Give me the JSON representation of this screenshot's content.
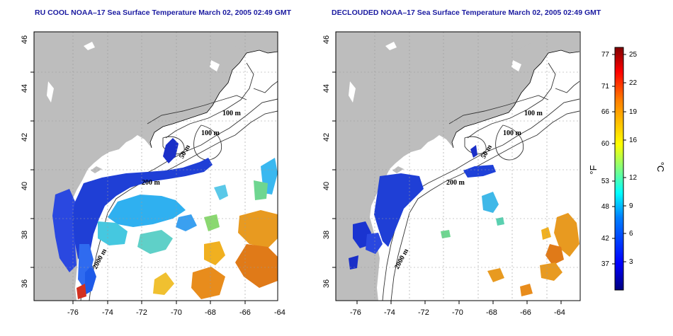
{
  "panels": [
    {
      "id": "left",
      "title": "RU COOL NOAA–17 Sea Surface Temperature March 02, 2005 02:49 GMT",
      "x_ticks": [
        "-76",
        "-74",
        "-72",
        "-70",
        "-68",
        "-66",
        "-64"
      ],
      "y_ticks": [
        "36",
        "38",
        "40",
        "42",
        "44",
        "46"
      ],
      "contour_labels": [
        "100 m",
        "100 m",
        "50 m",
        "200 m",
        "2000 m"
      ]
    },
    {
      "id": "right",
      "title": "DECLOUDED NOAA–17 Sea Surface Temperature March 02, 2005 02:49 GMT",
      "x_ticks": [
        "-76",
        "-74",
        "-72",
        "-70",
        "-68",
        "-66",
        "-64"
      ],
      "y_ticks": [
        "36",
        "38",
        "40",
        "42",
        "44",
        "46"
      ],
      "contour_labels": [
        "100 m",
        "100 m",
        "50 m",
        "200 m",
        "2000 m"
      ]
    }
  ],
  "colorbar": {
    "fahrenheit_label": "°F",
    "celsius_label": "°C",
    "fahrenheit_ticks": [
      "77",
      "71",
      "66",
      "60",
      "53",
      "48",
      "42",
      "37"
    ],
    "celsius_ticks": [
      "25",
      "22",
      "19",
      "16",
      "12",
      "9",
      "6",
      "3"
    ],
    "colors": [
      "#00007f",
      "#0000ff",
      "#0080ff",
      "#00ffff",
      "#80ff80",
      "#ffff00",
      "#ff8000",
      "#ff0000",
      "#7f0000"
    ]
  },
  "colors": {
    "land": "#bdbdbd",
    "ocean": "#ffffff",
    "title": "#1a1aa0"
  }
}
